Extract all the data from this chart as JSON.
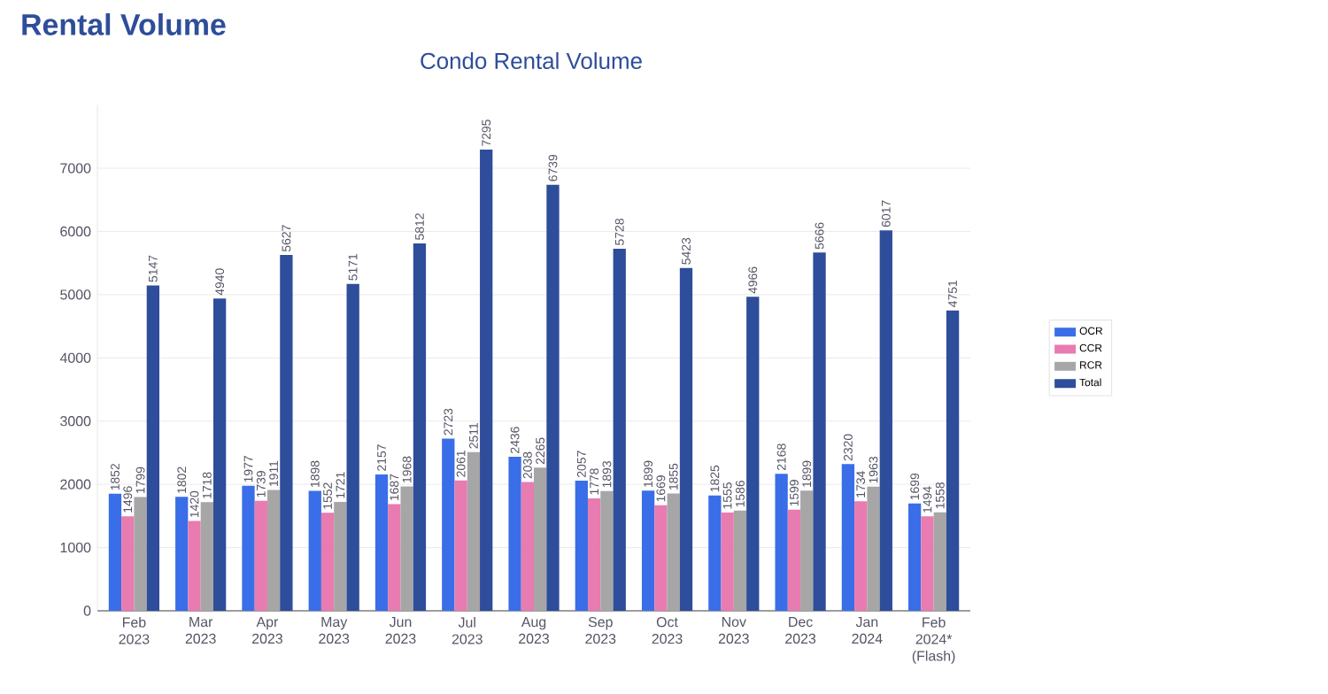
{
  "chart_data": {
    "type": "bar",
    "title": "Rental Volume",
    "subtitle": "Condo Rental Volume",
    "categories": [
      "Feb 2023",
      "Mar 2023",
      "Apr 2023",
      "May 2023",
      "Jun 2023",
      "Jul 2023",
      "Aug 2023",
      "Sep 2023",
      "Oct 2023",
      "Nov 2023",
      "Dec 2023",
      "Jan 2024",
      "Feb 2024* (Flash)"
    ],
    "series": [
      {
        "name": "OCR",
        "color": "#3a6ee8",
        "values": [
          1852,
          1802,
          1977,
          1898,
          2157,
          2723,
          2436,
          2057,
          1899,
          1825,
          2168,
          2320,
          1699
        ]
      },
      {
        "name": "CCR",
        "color": "#e87bb0",
        "values": [
          1496,
          1420,
          1739,
          1552,
          1687,
          2061,
          2038,
          1778,
          1669,
          1555,
          1599,
          1734,
          1494
        ]
      },
      {
        "name": "RCR",
        "color": "#a6a6a6",
        "values": [
          1799,
          1718,
          1911,
          1721,
          1968,
          2511,
          2265,
          1893,
          1855,
          1586,
          1899,
          1963,
          1558
        ]
      },
      {
        "name": "Total",
        "color": "#2e4d9a",
        "values": [
          5147,
          4940,
          5627,
          5171,
          5812,
          7295,
          6739,
          5728,
          5423,
          4966,
          5666,
          6017,
          4751
        ]
      }
    ],
    "ylim": [
      0,
      8000
    ],
    "yticks": [
      0,
      1000,
      2000,
      3000,
      4000,
      5000,
      6000,
      7000
    ],
    "grid": "y",
    "legend": "right",
    "data_labels": true
  }
}
